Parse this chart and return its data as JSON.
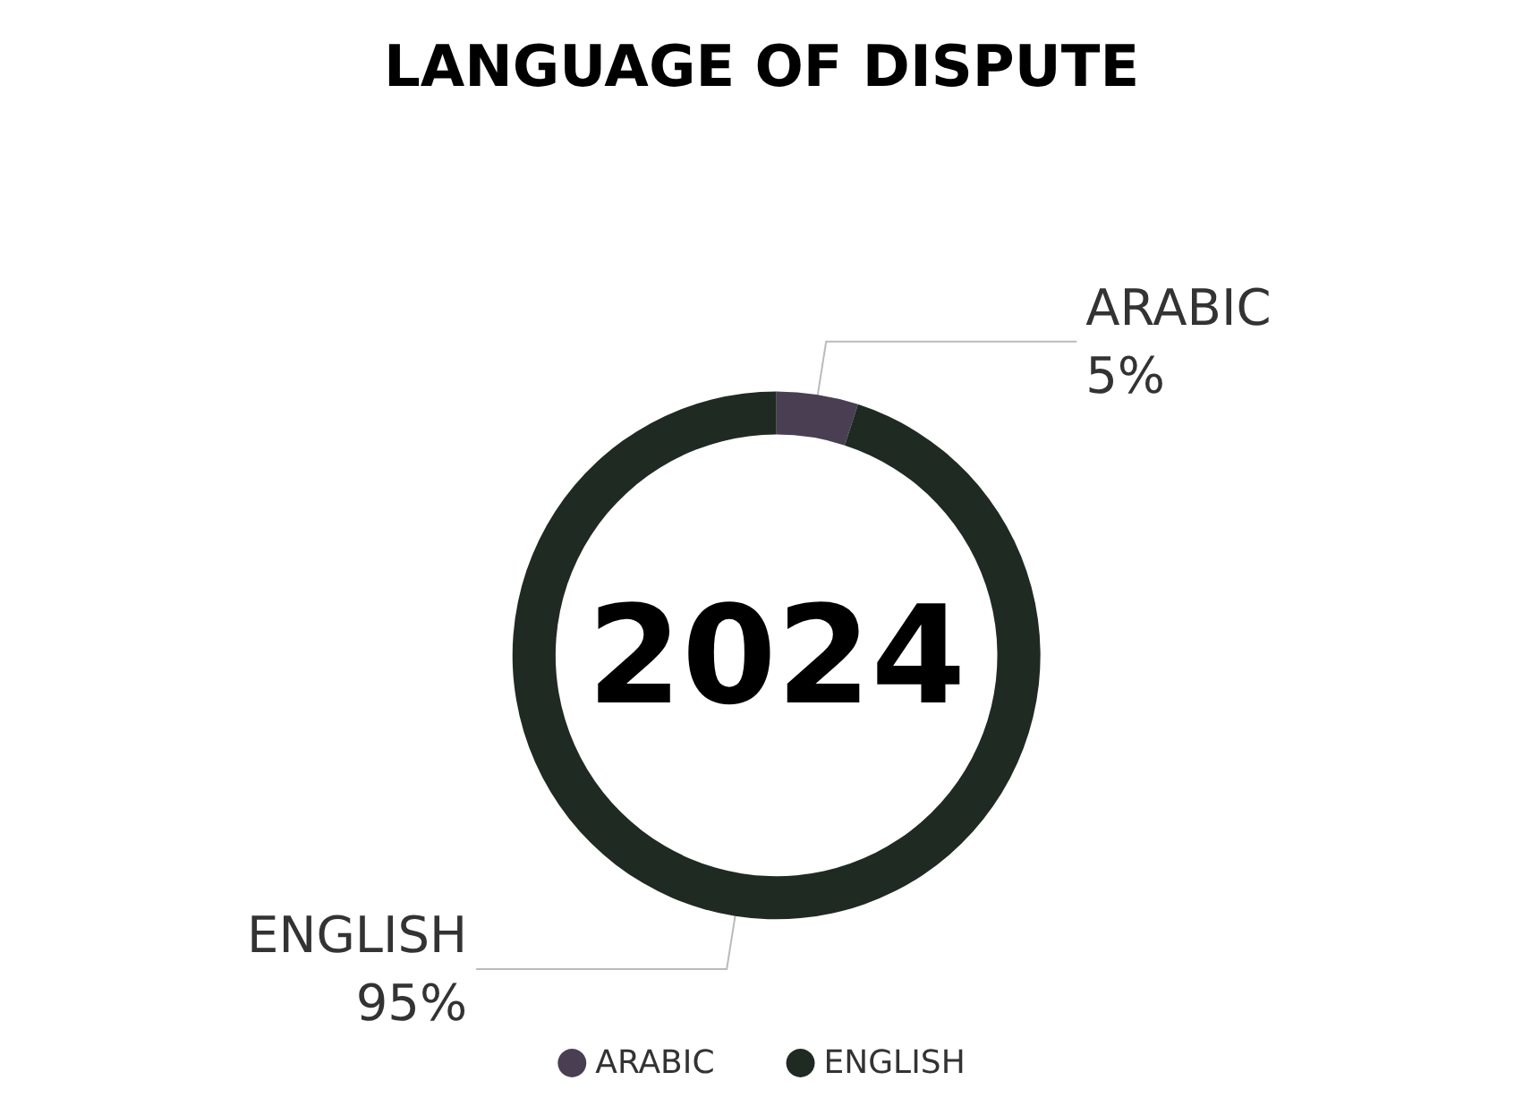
{
  "chart_data": {
    "type": "donut",
    "title": "LANGUAGE OF DISPUTE",
    "categories": [
      "ARABIC",
      "ENGLISH"
    ],
    "values": [
      5,
      95
    ],
    "colors": [
      "#4a3f52",
      "#1f2a22"
    ],
    "value_labels": [
      "5%",
      "95%"
    ],
    "legend": "bottom",
    "annotations": [
      "2024"
    ]
  }
}
